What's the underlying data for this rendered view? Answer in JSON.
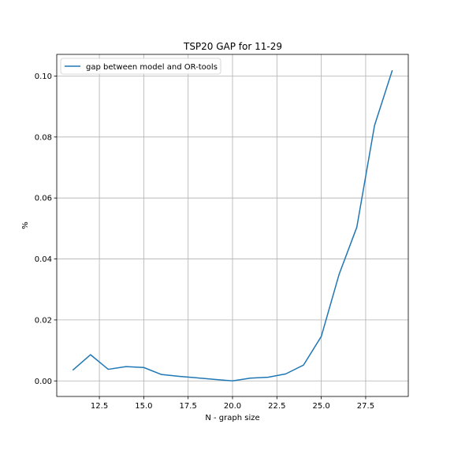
{
  "chart_data": {
    "type": "line",
    "title": "TSP20 GAP for 11-29",
    "xlabel": "N - graph size",
    "ylabel": "%",
    "xlim": [
      10.1,
      29.9
    ],
    "ylim": [
      -0.0051,
      0.1071
    ],
    "xticks": [
      12.5,
      15.0,
      17.5,
      20.0,
      22.5,
      25.0,
      27.5
    ],
    "xtick_labels": [
      "12.5",
      "15.0",
      "17.5",
      "20.0",
      "22.5",
      "25.0",
      "27.5"
    ],
    "yticks": [
      0.0,
      0.02,
      0.04,
      0.06,
      0.08,
      0.1
    ],
    "ytick_labels": [
      "0.00",
      "0.02",
      "0.04",
      "0.06",
      "0.08",
      "0.10"
    ],
    "grid": true,
    "legend_position": "top-left",
    "series": [
      {
        "name": "gap between model and OR-tools",
        "color": "#1f77b4",
        "x": [
          11,
          12,
          13,
          14,
          15,
          16,
          17,
          18,
          19,
          20,
          21,
          22,
          23,
          24,
          25,
          26,
          27,
          28,
          29
        ],
        "y": [
          0.0035,
          0.0086,
          0.0038,
          0.0047,
          0.0044,
          0.0021,
          0.0015,
          0.001,
          0.0005,
          0.0,
          0.0009,
          0.0012,
          0.0023,
          0.0052,
          0.0146,
          0.0349,
          0.0504,
          0.0838,
          0.1019
        ]
      }
    ]
  }
}
